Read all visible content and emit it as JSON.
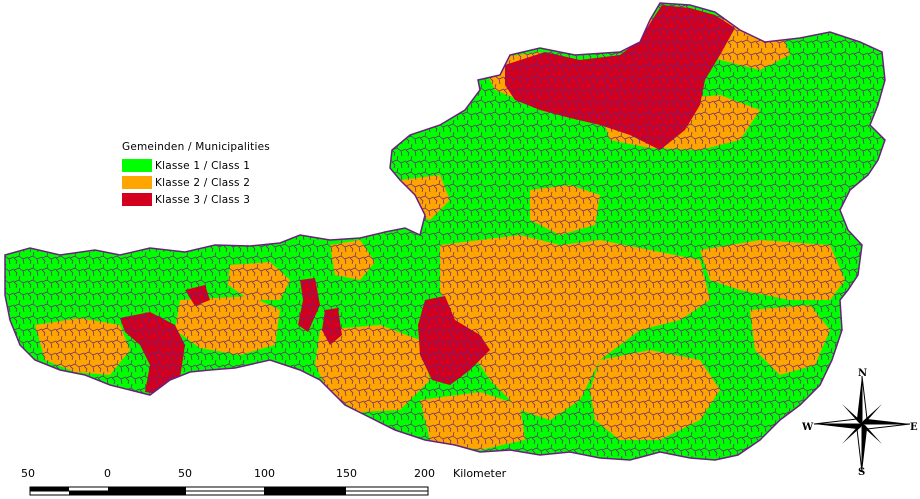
{
  "legend": {
    "title": "Gemeinden / Municipalities",
    "classes": [
      {
        "label": "Klasse 1 / Class 1",
        "color": "#00ff00"
      },
      {
        "label": "Klasse 2 / Class 2",
        "color": "#ffa500"
      },
      {
        "label": "Klasse 3 / Class 3",
        "color": "#d2001e"
      }
    ]
  },
  "border_color": "#6a1f7e",
  "scale_bar": {
    "ticks": [
      "50",
      "0",
      "50",
      "100",
      "150",
      "200"
    ],
    "unit": "Kilometer"
  },
  "compass": {
    "n": "N",
    "s": "S",
    "e": "E",
    "w": "W"
  }
}
